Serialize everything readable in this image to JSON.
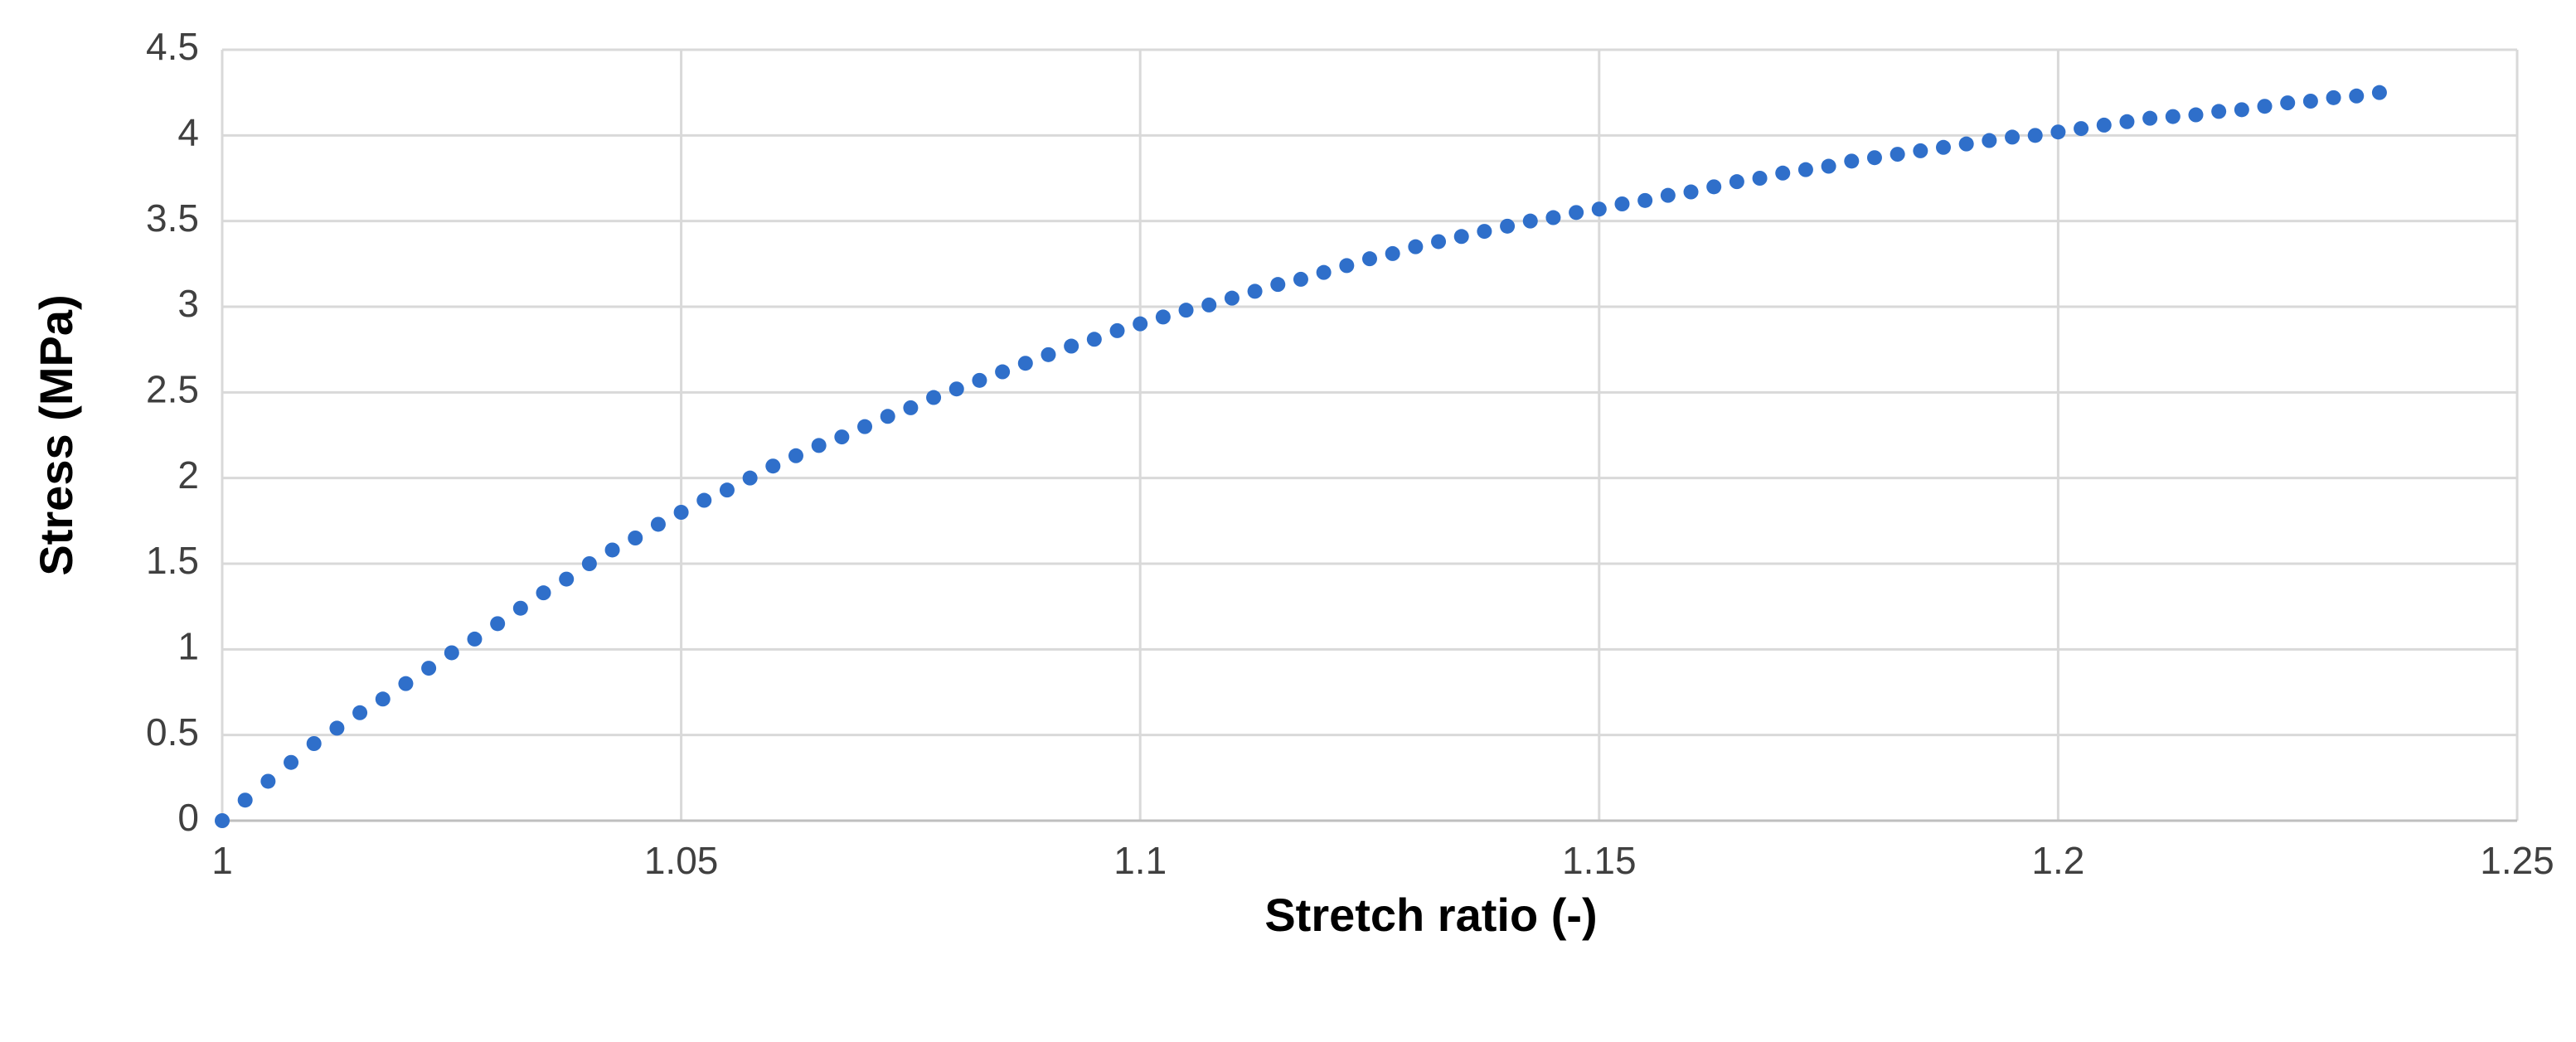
{
  "chart_data": {
    "type": "scatter",
    "x_label": "Stretch ratio (-)",
    "y_label": "Stress (MPa)",
    "xlim": [
      1,
      1.25
    ],
    "xticks": [
      1,
      1.05,
      1.1,
      1.15,
      1.2,
      1.25
    ],
    "ylim": [
      0,
      4.5
    ],
    "yticks": [
      0,
      0.5,
      1,
      1.5,
      2,
      2.5,
      3,
      3.5,
      4,
      4.5
    ],
    "grid": true,
    "series": [
      {
        "color": "#2f6fca",
        "x": [
          1,
          1.0025,
          1.005,
          1.0075,
          1.01,
          1.0125,
          1.015,
          1.0175,
          1.02,
          1.0225,
          1.025,
          1.0275,
          1.03,
          1.0325,
          1.035,
          1.0375,
          1.04,
          1.0425,
          1.045,
          1.0475,
          1.05,
          1.0525,
          1.055,
          1.0575,
          1.06,
          1.0625,
          1.065,
          1.0675,
          1.07,
          1.0725,
          1.075,
          1.0775,
          1.08,
          1.0825,
          1.085,
          1.0875,
          1.09,
          1.0925,
          1.095,
          1.0975,
          1.1,
          1.1025,
          1.105,
          1.1075,
          1.11,
          1.1125,
          1.115,
          1.1175,
          1.12,
          1.1225,
          1.125,
          1.1275,
          1.13,
          1.1325,
          1.135,
          1.1375,
          1.14,
          1.1425,
          1.145,
          1.1475,
          1.15,
          1.1525,
          1.155,
          1.1575,
          1.16,
          1.1625,
          1.165,
          1.1675,
          1.17,
          1.1725,
          1.175,
          1.1775,
          1.18,
          1.1825,
          1.185,
          1.1875,
          1.19,
          1.1925,
          1.195,
          1.1975,
          1.2,
          1.2025,
          1.205,
          1.2075,
          1.21,
          1.2125,
          1.215,
          1.2175,
          1.22,
          1.2225,
          1.225,
          1.2275,
          1.23,
          1.2325,
          1.235
        ],
        "values": [
          0,
          0.12,
          0.23,
          0.34,
          0.45,
          0.54,
          0.63,
          0.71,
          0.8,
          0.89,
          0.98,
          1.06,
          1.15,
          1.24,
          1.33,
          1.41,
          1.5,
          1.58,
          1.65,
          1.73,
          1.8,
          1.87,
          1.93,
          2.0,
          2.07,
          2.13,
          2.19,
          2.24,
          2.3,
          2.36,
          2.41,
          2.47,
          2.52,
          2.57,
          2.62,
          2.67,
          2.72,
          2.77,
          2.81,
          2.86,
          2.9,
          2.94,
          2.98,
          3.01,
          3.05,
          3.09,
          3.13,
          3.16,
          3.2,
          3.24,
          3.28,
          3.31,
          3.35,
          3.38,
          3.41,
          3.44,
          3.47,
          3.5,
          3.52,
          3.55,
          3.57,
          3.6,
          3.62,
          3.65,
          3.67,
          3.7,
          3.73,
          3.75,
          3.78,
          3.8,
          3.82,
          3.85,
          3.87,
          3.89,
          3.91,
          3.93,
          3.95,
          3.97,
          3.99,
          4.0,
          4.02,
          4.04,
          4.06,
          4.08,
          4.1,
          4.11,
          4.12,
          4.14,
          4.15,
          4.17,
          4.19,
          4.2,
          4.22,
          4.23,
          4.25
        ]
      }
    ]
  }
}
